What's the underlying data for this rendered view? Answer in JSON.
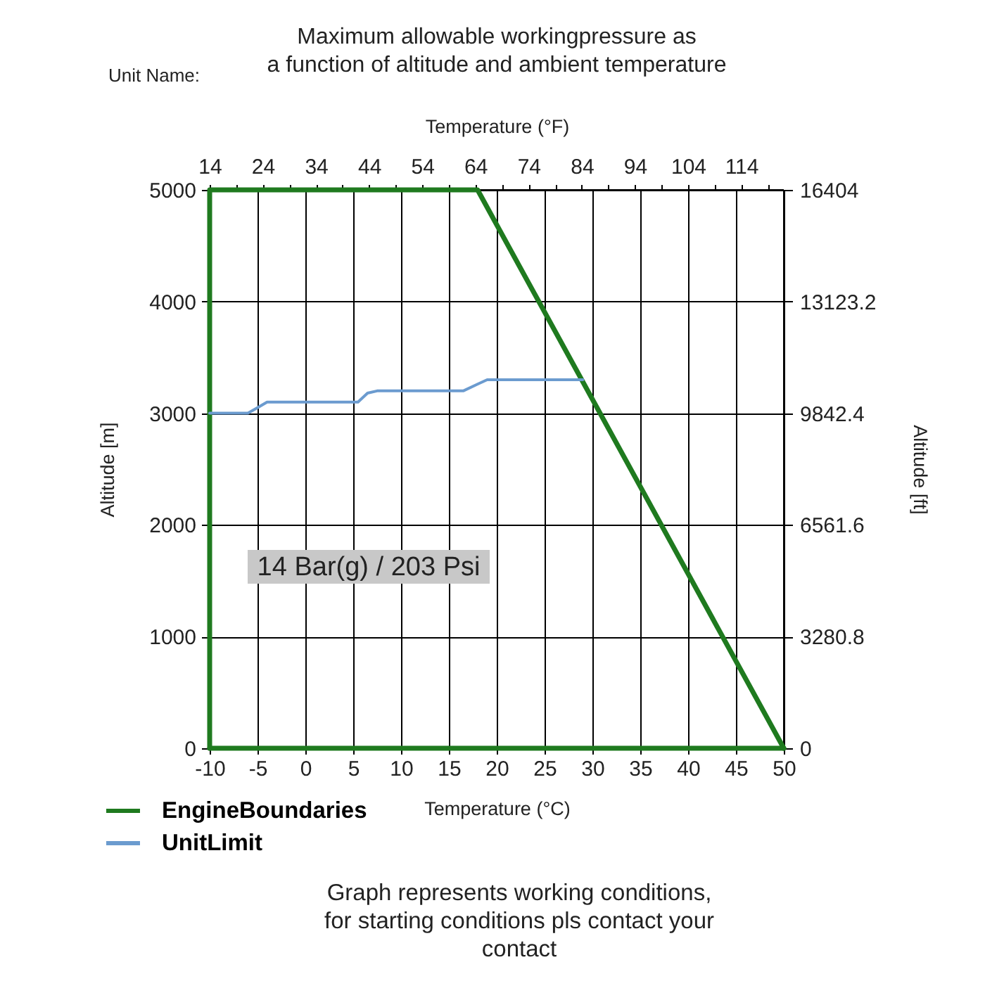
{
  "chart_data": {
    "type": "line",
    "title": "Maximum allowable workingpressure as\na function of altitude and ambient temperature",
    "xlabel": "Temperature (°C)",
    "x2label": "Temperature (°F)",
    "ylabel": "Altitude [m]",
    "y2label": "Altitude [ft]",
    "xlim": [
      -10,
      50
    ],
    "xticks": [
      -10,
      -5,
      0,
      5,
      10,
      15,
      20,
      25,
      30,
      35,
      40,
      45,
      50
    ],
    "x2lim": [
      14,
      122
    ],
    "x2ticks": [
      14,
      {
        "value": 19,
        "label": null
      },
      24,
      {
        "value": 29,
        "label": null
      },
      34,
      {
        "value": 39,
        "label": null
      },
      44,
      {
        "value": 49,
        "label": null
      },
      54,
      {
        "value": 59,
        "label": null
      },
      64,
      {
        "value": 69,
        "label": null
      },
      74,
      {
        "value": 79,
        "label": null
      },
      84,
      {
        "value": 89,
        "label": null
      },
      94,
      {
        "value": 99,
        "label": null
      },
      104,
      {
        "value": 109,
        "label": null
      },
      114,
      {
        "value": 119,
        "label": null
      }
    ],
    "ylim": [
      0,
      5000
    ],
    "yticks": [
      0,
      1000,
      2000,
      3000,
      4000,
      5000
    ],
    "y2lim": [
      0,
      16404
    ],
    "y2ticks": [
      0,
      3280.8,
      6561.6,
      9842.4,
      13123.2,
      16404
    ],
    "series": [
      {
        "name": "EngineBoundaries",
        "color": "#1f7a1f",
        "x": [
          -10,
          -10,
          18,
          50
        ],
        "values": [
          0,
          5000,
          5000,
          0
        ]
      },
      {
        "name": "UnitLimit",
        "color": "#6b9bcf",
        "x": [
          -10,
          -6,
          -5,
          -4,
          5.5,
          6.5,
          7.5,
          16.5,
          18,
          19,
          29
        ],
        "values": [
          3000,
          3000,
          3050,
          3100,
          3100,
          3180,
          3200,
          3200,
          3260,
          3300,
          3300
        ]
      },
      {
        "color": "#1f7a1f",
        "x": [
          -10,
          50
        ],
        "values": [
          0,
          0
        ]
      }
    ],
    "grid": true,
    "legend": "bottom left",
    "marker": "none",
    "line_style": "solid",
    "annotations": [
      "Unit Name:",
      "14 Bar(g) / 203 Psi",
      "Graph represents working conditions,\nfor starting conditions pls contact your\ncontact"
    ]
  }
}
